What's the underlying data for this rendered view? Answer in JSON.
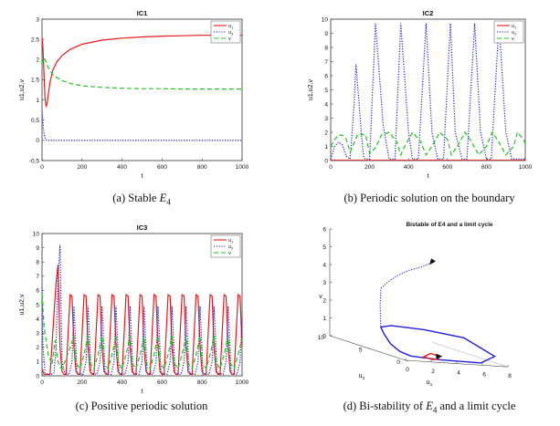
{
  "chart_data": [
    {
      "type": "line",
      "title": "IC1",
      "caption_prefix": "(a) Stable ",
      "caption_math": "E",
      "caption_sub": "4",
      "caption_suffix": "",
      "xlabel": "t",
      "ylabel": "u1,u2,v",
      "xlim": [
        0,
        1000
      ],
      "ylim": [
        -0.5,
        3
      ],
      "xticks": [
        "0",
        "200",
        "400",
        "600",
        "800",
        "1000"
      ],
      "yticks": [
        "-0.5",
        "0",
        "0.5",
        "1",
        "1.5",
        "2",
        "2.5",
        "3"
      ],
      "legend": [
        "u1",
        "u2",
        "v"
      ],
      "series": [
        {
          "name": "u1",
          "color": "#e41a1c",
          "style": "solid",
          "x": [
            0,
            5,
            10,
            15,
            20,
            25,
            30,
            40,
            55,
            75,
            100,
            140,
            200,
            300,
            400,
            500,
            600,
            700,
            800,
            900,
            1000
          ],
          "y": [
            2.55,
            2.25,
            1.6,
            1.05,
            0.85,
            0.9,
            1.1,
            1.45,
            1.75,
            1.95,
            2.1,
            2.25,
            2.38,
            2.48,
            2.53,
            2.56,
            2.58,
            2.59,
            2.6,
            2.6,
            2.6
          ]
        },
        {
          "name": "u2",
          "color": "#1f1fd6",
          "style": "dotted",
          "x": [
            0,
            3,
            7,
            12,
            18,
            25,
            35,
            50,
            100,
            200,
            400,
            600,
            800,
            1000
          ],
          "y": [
            0.7,
            0.55,
            0.3,
            0.1,
            0.02,
            0.0,
            0.0,
            0.0,
            0.0,
            0.0,
            0.0,
            0.0,
            0.0,
            0.0
          ]
        },
        {
          "name": "v",
          "color": "#22c422",
          "style": "dashed",
          "x": [
            0,
            10,
            20,
            30,
            50,
            75,
            100,
            150,
            200,
            300,
            400,
            500,
            600,
            700,
            800,
            900,
            1000
          ],
          "y": [
            1.9,
            2.05,
            1.95,
            1.8,
            1.65,
            1.55,
            1.48,
            1.4,
            1.35,
            1.31,
            1.29,
            1.28,
            1.28,
            1.27,
            1.27,
            1.27,
            1.27
          ]
        }
      ]
    },
    {
      "type": "line",
      "title": "IC2",
      "caption_prefix": "(b) Periodic solution on the boundary",
      "caption_math": "",
      "caption_sub": "",
      "caption_suffix": "",
      "xlabel": "t",
      "ylabel": "u1,u2,v",
      "xlim": [
        0,
        1000
      ],
      "ylim": [
        0,
        10
      ],
      "xticks": [
        "0",
        "200",
        "400",
        "600",
        "800",
        "1000"
      ],
      "yticks": [
        "0",
        "1",
        "2",
        "3",
        "4",
        "5",
        "6",
        "7",
        "8",
        "9",
        "10"
      ],
      "legend": [
        "u1",
        "u2",
        "v"
      ],
      "series": [
        {
          "name": "u1",
          "color": "#e41a1c",
          "style": "solid",
          "x": [
            0,
            1000
          ],
          "y": [
            0.02,
            0.02
          ]
        },
        {
          "name": "u2",
          "color": "#1f1fd6",
          "style": "dotted",
          "x": [
            0,
            20,
            40,
            60,
            80,
            100,
            120,
            130,
            160,
            170,
            180,
            200,
            230,
            270,
            300,
            330,
            360,
            400,
            420,
            450,
            490,
            520,
            550,
            580,
            615,
            640,
            675,
            700,
            740,
            770,
            800,
            825,
            865,
            900,
            930,
            960,
            990,
            1000
          ],
          "y": [
            0.1,
            1.0,
            1.3,
            1.1,
            0.3,
            0.1,
            4.0,
            6.8,
            1.5,
            0.2,
            0.1,
            0.1,
            9.7,
            2.5,
            0.1,
            0.1,
            9.7,
            2.0,
            0.1,
            0.1,
            9.7,
            2.0,
            0.1,
            0.1,
            9.7,
            2.0,
            0.1,
            0.1,
            9.7,
            2.0,
            0.1,
            0.1,
            9.7,
            2.0,
            0.1,
            0.1,
            0.1,
            0.1
          ]
        },
        {
          "name": "v",
          "color": "#22c422",
          "style": "dashed",
          "x": [
            0,
            20,
            40,
            60,
            80,
            100,
            140,
            180,
            200,
            230,
            260,
            300,
            340,
            360,
            380,
            420,
            460,
            490,
            520,
            560,
            600,
            620,
            650,
            690,
            720,
            760,
            800,
            830,
            860,
            900,
            940,
            960,
            990,
            1000
          ],
          "y": [
            1.0,
            1.5,
            1.8,
            1.8,
            1.5,
            0.6,
            1.9,
            1.8,
            0.5,
            0.9,
            1.8,
            2.0,
            1.3,
            0.4,
            1.0,
            2.0,
            1.4,
            0.4,
            1.0,
            2.0,
            1.5,
            0.4,
            1.0,
            2.0,
            1.4,
            0.4,
            1.0,
            2.0,
            1.4,
            0.4,
            1.0,
            2.0,
            1.5,
            1.2
          ]
        }
      ]
    },
    {
      "type": "line",
      "title": "IC3",
      "caption_prefix": "(c) Positive periodic solution",
      "caption_math": "",
      "caption_sub": "",
      "caption_suffix": "",
      "xlabel": "t",
      "ylabel": "u1,u2,v",
      "xlim": [
        0,
        1000
      ],
      "ylim": [
        0,
        10
      ],
      "xticks": [
        "0",
        "200",
        "400",
        "600",
        "800",
        "1000"
      ],
      "yticks": [
        "0",
        "1",
        "2",
        "3",
        "4",
        "5",
        "6",
        "7",
        "8",
        "9",
        "10"
      ],
      "legend": [
        "u1",
        "u2",
        "v"
      ],
      "series": [
        {
          "name": "u1",
          "color": "#e41a1c",
          "style": "solid",
          "x": [
            0,
            10,
            40,
            70,
            80,
            90,
            100,
            110,
            120,
            140,
            150,
            160,
            170,
            180,
            190,
            210,
            220,
            230,
            240,
            250,
            260,
            280,
            290,
            300,
            310,
            320,
            330,
            350,
            360,
            370,
            380,
            390,
            400,
            420,
            430,
            440,
            450,
            460,
            470,
            490,
            500,
            510,
            520,
            530,
            540,
            560,
            570,
            580,
            590,
            600,
            610,
            630,
            640,
            650,
            660,
            670,
            680,
            700,
            710,
            720,
            730,
            740,
            750,
            770,
            780,
            790,
            800,
            810,
            820,
            840,
            850,
            860,
            870,
            880,
            890,
            910,
            920,
            930,
            940,
            950,
            960,
            980,
            990,
            1000
          ],
          "y": [
            0.5,
            0.1,
            0.1,
            6.5,
            7.8,
            2.0,
            0.3,
            0.1,
            0.1,
            5.7,
            5.6,
            2.0,
            0.3,
            0.1,
            0.1,
            5.7,
            5.6,
            2.0,
            0.3,
            0.1,
            0.1,
            5.7,
            5.6,
            2.0,
            0.3,
            0.1,
            0.1,
            5.7,
            5.6,
            2.0,
            0.3,
            0.1,
            0.1,
            5.7,
            5.6,
            2.0,
            0.3,
            0.1,
            0.1,
            5.7,
            5.6,
            2.0,
            0.3,
            0.1,
            0.1,
            5.7,
            5.6,
            2.0,
            0.3,
            0.1,
            0.1,
            5.7,
            5.6,
            2.0,
            0.3,
            0.1,
            0.1,
            5.7,
            5.6,
            2.0,
            0.3,
            0.1,
            0.1,
            5.7,
            5.6,
            2.0,
            0.3,
            0.1,
            0.1,
            5.7,
            5.6,
            2.0,
            0.3,
            0.1,
            0.1,
            5.7,
            5.6,
            2.0,
            0.3,
            0.1,
            0.1,
            5.7,
            5.6,
            2.0
          ]
        },
        {
          "name": "u2",
          "color": "#1f1fd6",
          "style": "dotted",
          "x": [
            0,
            5,
            15,
            30,
            45,
            60,
            70,
            80,
            90,
            100,
            115,
            135,
            150,
            160,
            175,
            205,
            220,
            230,
            245,
            275,
            290,
            300,
            315,
            345,
            360,
            370,
            385,
            415,
            430,
            440,
            455,
            485,
            500,
            510,
            525,
            555,
            570,
            580,
            595,
            625,
            640,
            650,
            665,
            695,
            710,
            720,
            735,
            765,
            780,
            790,
            805,
            835,
            850,
            860,
            875,
            905,
            920,
            930,
            945,
            975,
            990,
            1000
          ],
          "y": [
            6.2,
            2.0,
            0.2,
            0.1,
            0.1,
            0.2,
            2.0,
            7.0,
            9.2,
            1.0,
            0.1,
            0.1,
            1.0,
            4.9,
            0.2,
            0.1,
            1.0,
            4.9,
            0.2,
            0.1,
            1.0,
            4.9,
            0.2,
            0.1,
            1.0,
            4.9,
            0.2,
            0.1,
            1.0,
            4.9,
            0.2,
            0.1,
            1.0,
            4.9,
            0.2,
            0.1,
            1.0,
            4.9,
            0.2,
            0.1,
            1.0,
            4.9,
            0.2,
            0.1,
            1.0,
            4.9,
            0.2,
            0.1,
            1.0,
            4.9,
            0.2,
            0.1,
            1.0,
            4.9,
            0.2,
            0.1,
            1.0,
            4.9,
            0.2,
            0.1,
            1.0,
            4.0
          ]
        },
        {
          "name": "v",
          "color": "#22c422",
          "style": "dashed",
          "x": [
            0,
            10,
            30,
            50,
            65,
            80,
            90,
            100,
            120,
            140,
            160,
            170,
            190,
            210,
            230,
            240,
            260,
            280,
            300,
            310,
            330,
            350,
            370,
            380,
            400,
            420,
            440,
            450,
            470,
            490,
            510,
            520,
            540,
            560,
            580,
            590,
            610,
            630,
            650,
            660,
            680,
            700,
            720,
            730,
            750,
            770,
            790,
            800,
            820,
            840,
            860,
            870,
            890,
            910,
            930,
            940,
            960,
            980,
            1000
          ],
          "y": [
            5.8,
            3.5,
            1.5,
            0.8,
            2.5,
            1.0,
            0.6,
            0.5,
            1.2,
            2.0,
            2.8,
            0.9,
            0.5,
            1.5,
            2.8,
            0.9,
            0.5,
            1.5,
            2.8,
            0.9,
            0.5,
            1.5,
            2.8,
            0.9,
            0.5,
            1.5,
            2.8,
            0.9,
            0.5,
            1.5,
            2.8,
            0.9,
            0.5,
            1.5,
            2.8,
            0.9,
            0.5,
            1.5,
            2.8,
            0.9,
            0.5,
            1.5,
            2.8,
            0.9,
            0.5,
            1.5,
            2.8,
            0.9,
            0.5,
            1.5,
            2.8,
            0.9,
            0.5,
            1.5,
            2.8,
            0.9,
            0.5,
            1.5,
            2.6
          ]
        }
      ]
    },
    {
      "type": "line",
      "title": "Bistable of E4 and a limit cycle",
      "caption_prefix": "(d) Bi-stability of ",
      "caption_math": "E",
      "caption_sub": "4",
      "caption_suffix": " and a limit cycle",
      "xlabel": "u1",
      "ylabel": "u2",
      "zlabel": "v",
      "xlim": [
        0,
        8
      ],
      "ylim": [
        0,
        10
      ],
      "zlim": [
        0,
        6
      ],
      "xticks": [
        "0",
        "2",
        "4",
        "6",
        "8"
      ],
      "yticks": [
        "0",
        "5",
        "10"
      ],
      "zticks": [
        "0",
        "1",
        "2",
        "3",
        "4",
        "5",
        "6"
      ],
      "series": [
        {
          "name": "",
          "color": "#1f1fd6",
          "style": "dotted",
          "u1": [
            3.4,
            3.3,
            2.9,
            2.2,
            1.5,
            1.0,
            0.5,
            0.5,
            0.6
          ],
          "u2": [
            2.0,
            2.3,
            2.8,
            3.3,
            3.7,
            4.0,
            4.1,
            4.2,
            4.3
          ],
          "v": [
            5.4,
            5.3,
            5.0,
            4.7,
            4.3,
            3.9,
            3.5,
            2.6,
            1.3
          ]
        },
        {
          "name": "",
          "color": "#1f1fd6",
          "style": "solid",
          "u1": [
            0.6,
            1.0,
            3.0,
            5.5,
            7.2,
            6.0,
            3.0,
            1.0,
            0.5,
            0.3,
            0.4,
            0.6
          ],
          "u2": [
            4.3,
            3.6,
            2.6,
            1.6,
            0.4,
            0.2,
            0.5,
            1.0,
            1.6,
            2.5,
            3.5,
            4.3
          ],
          "v": [
            1.3,
            1.5,
            1.5,
            1.3,
            0.5,
            0.1,
            0.1,
            0.15,
            0.3,
            0.6,
            1.0,
            1.3
          ]
        },
        {
          "name": "",
          "color": "#e41a1c",
          "style": "solid",
          "u1": [
            2.6,
            2.0,
            2.6,
            3.2,
            3.0,
            2.6
          ],
          "u2": [
            0.8,
            1.0,
            1.1,
            0.9,
            0.8,
            0.8
          ],
          "v": [
            0.05,
            0.15,
            0.35,
            0.25,
            0.1,
            0.05
          ]
        }
      ]
    }
  ]
}
